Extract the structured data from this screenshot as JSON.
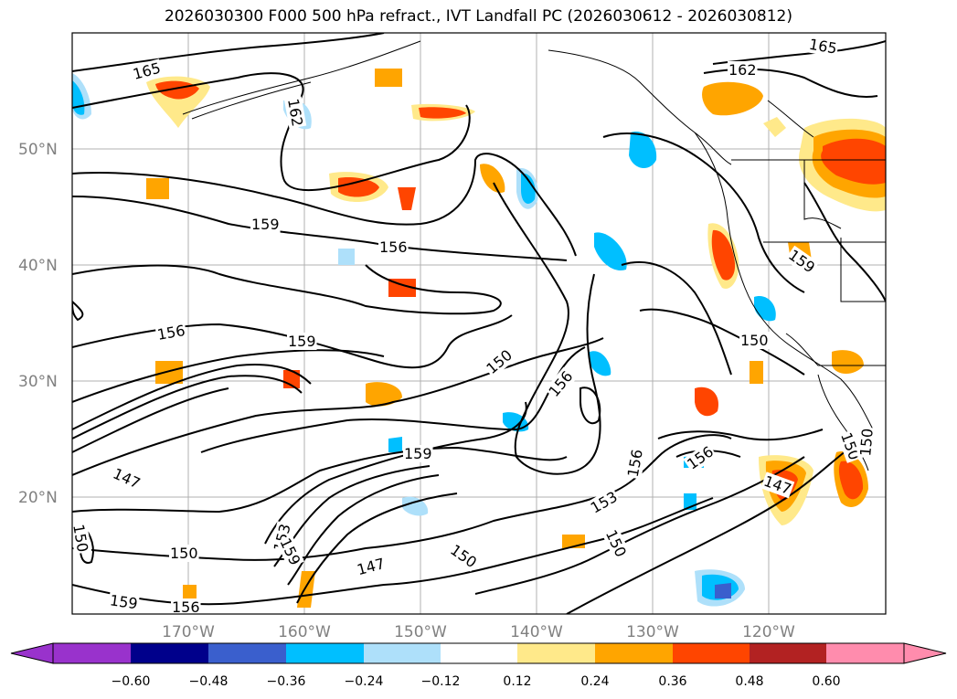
{
  "title": "2026030300 F000 500 hPa refract., IVT Landfall PC (2026030612 - 2026030812)",
  "lon_ticks": [
    "170°W",
    "160°W",
    "150°W",
    "140°W",
    "130°W",
    "120°W"
  ],
  "lat_ticks": [
    "50°N",
    "40°N",
    "30°N",
    "20°N"
  ],
  "extent": {
    "lon": [
      -180,
      -110
    ],
    "lat": [
      10,
      60
    ]
  },
  "contour_labels": [
    "165",
    "162",
    "165",
    "162",
    "159",
    "156",
    "159",
    "156",
    "159",
    "150",
    "156",
    "159",
    "156",
    "156",
    "150",
    "147",
    "150",
    "153",
    "159",
    "147",
    "150",
    "150",
    "153",
    "150",
    "159",
    "156",
    "147",
    "150",
    "150"
  ],
  "colorbar": {
    "ticks": [
      "−0.60",
      "−0.48",
      "−0.36",
      "−0.24",
      "−0.12",
      "0.12",
      "0.24",
      "0.36",
      "0.48",
      "0.60"
    ],
    "colors": [
      "#9932cc",
      "#00008b",
      "#3a5fcd",
      "#00bfff",
      "#aee0fa",
      "#ffffff",
      "#ffe98a",
      "#ffa500",
      "#ff4500",
      "#b22222",
      "#ff8cad"
    ]
  },
  "shading_colors": {
    "light_orange": "#ffe98a",
    "orange": "#ffa500",
    "red_orange": "#ff4500",
    "light_blue": "#aee0fa",
    "blue": "#00bfff",
    "dark_blue": "#3a5fcd"
  }
}
